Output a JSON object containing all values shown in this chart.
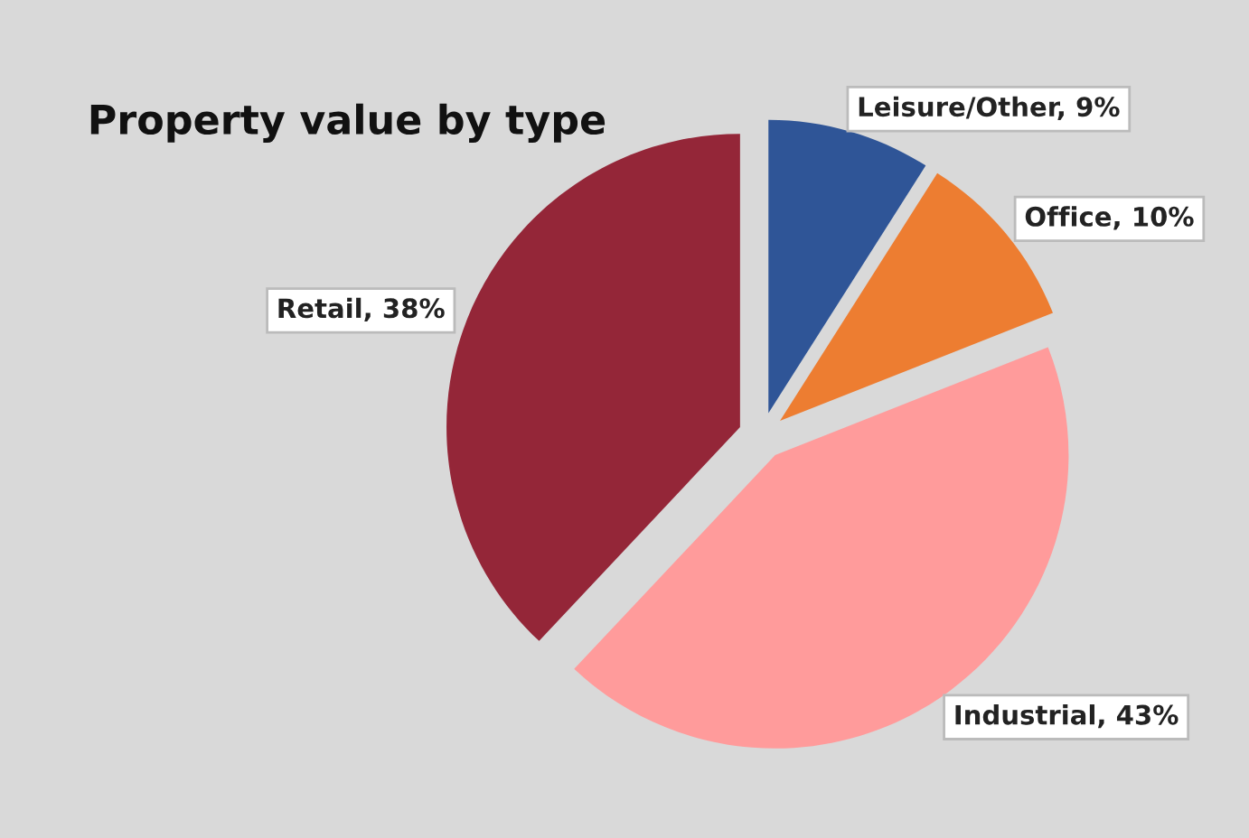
{
  "chart_data": {
    "type": "pie",
    "title": "Property value by type",
    "categories": [
      "Leisure/Other",
      "Office",
      "Industrial",
      "Retail"
    ],
    "values": [
      9,
      10,
      43,
      38
    ],
    "colors": [
      "#2f5597",
      "#ed7d31",
      "#ff9b9b",
      "#942638"
    ],
    "value_labels": [
      "9%",
      "10%",
      "43%",
      "38%"
    ]
  }
}
